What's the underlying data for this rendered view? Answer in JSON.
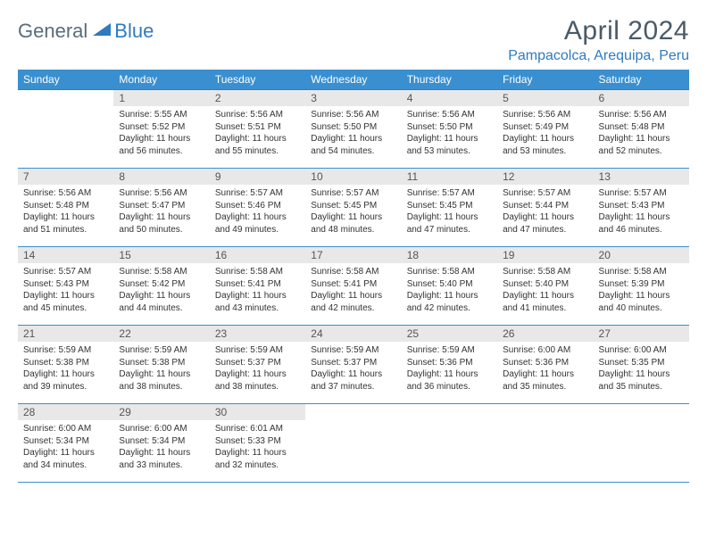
{
  "logo": {
    "general": "General",
    "blue": "Blue"
  },
  "title": "April 2024",
  "location": "Pampacolca, Arequipa, Peru",
  "colors": {
    "header_bg": "#3a8fd0",
    "header_text": "#ffffff",
    "accent": "#2f7bbf",
    "daynum_bg": "#e8e8e8",
    "text": "#333333",
    "title_color": "#4a5a68"
  },
  "weekdays": [
    "Sunday",
    "Monday",
    "Tuesday",
    "Wednesday",
    "Thursday",
    "Friday",
    "Saturday"
  ],
  "weeks": [
    [
      null,
      {
        "day": 1,
        "sunrise": "5:55 AM",
        "sunset": "5:52 PM",
        "daylight": "11 hours and 56 minutes."
      },
      {
        "day": 2,
        "sunrise": "5:56 AM",
        "sunset": "5:51 PM",
        "daylight": "11 hours and 55 minutes."
      },
      {
        "day": 3,
        "sunrise": "5:56 AM",
        "sunset": "5:50 PM",
        "daylight": "11 hours and 54 minutes."
      },
      {
        "day": 4,
        "sunrise": "5:56 AM",
        "sunset": "5:50 PM",
        "daylight": "11 hours and 53 minutes."
      },
      {
        "day": 5,
        "sunrise": "5:56 AM",
        "sunset": "5:49 PM",
        "daylight": "11 hours and 53 minutes."
      },
      {
        "day": 6,
        "sunrise": "5:56 AM",
        "sunset": "5:48 PM",
        "daylight": "11 hours and 52 minutes."
      }
    ],
    [
      {
        "day": 7,
        "sunrise": "5:56 AM",
        "sunset": "5:48 PM",
        "daylight": "11 hours and 51 minutes."
      },
      {
        "day": 8,
        "sunrise": "5:56 AM",
        "sunset": "5:47 PM",
        "daylight": "11 hours and 50 minutes."
      },
      {
        "day": 9,
        "sunrise": "5:57 AM",
        "sunset": "5:46 PM",
        "daylight": "11 hours and 49 minutes."
      },
      {
        "day": 10,
        "sunrise": "5:57 AM",
        "sunset": "5:45 PM",
        "daylight": "11 hours and 48 minutes."
      },
      {
        "day": 11,
        "sunrise": "5:57 AM",
        "sunset": "5:45 PM",
        "daylight": "11 hours and 47 minutes."
      },
      {
        "day": 12,
        "sunrise": "5:57 AM",
        "sunset": "5:44 PM",
        "daylight": "11 hours and 47 minutes."
      },
      {
        "day": 13,
        "sunrise": "5:57 AM",
        "sunset": "5:43 PM",
        "daylight": "11 hours and 46 minutes."
      }
    ],
    [
      {
        "day": 14,
        "sunrise": "5:57 AM",
        "sunset": "5:43 PM",
        "daylight": "11 hours and 45 minutes."
      },
      {
        "day": 15,
        "sunrise": "5:58 AM",
        "sunset": "5:42 PM",
        "daylight": "11 hours and 44 minutes."
      },
      {
        "day": 16,
        "sunrise": "5:58 AM",
        "sunset": "5:41 PM",
        "daylight": "11 hours and 43 minutes."
      },
      {
        "day": 17,
        "sunrise": "5:58 AM",
        "sunset": "5:41 PM",
        "daylight": "11 hours and 42 minutes."
      },
      {
        "day": 18,
        "sunrise": "5:58 AM",
        "sunset": "5:40 PM",
        "daylight": "11 hours and 42 minutes."
      },
      {
        "day": 19,
        "sunrise": "5:58 AM",
        "sunset": "5:40 PM",
        "daylight": "11 hours and 41 minutes."
      },
      {
        "day": 20,
        "sunrise": "5:58 AM",
        "sunset": "5:39 PM",
        "daylight": "11 hours and 40 minutes."
      }
    ],
    [
      {
        "day": 21,
        "sunrise": "5:59 AM",
        "sunset": "5:38 PM",
        "daylight": "11 hours and 39 minutes."
      },
      {
        "day": 22,
        "sunrise": "5:59 AM",
        "sunset": "5:38 PM",
        "daylight": "11 hours and 38 minutes."
      },
      {
        "day": 23,
        "sunrise": "5:59 AM",
        "sunset": "5:37 PM",
        "daylight": "11 hours and 38 minutes."
      },
      {
        "day": 24,
        "sunrise": "5:59 AM",
        "sunset": "5:37 PM",
        "daylight": "11 hours and 37 minutes."
      },
      {
        "day": 25,
        "sunrise": "5:59 AM",
        "sunset": "5:36 PM",
        "daylight": "11 hours and 36 minutes."
      },
      {
        "day": 26,
        "sunrise": "6:00 AM",
        "sunset": "5:36 PM",
        "daylight": "11 hours and 35 minutes."
      },
      {
        "day": 27,
        "sunrise": "6:00 AM",
        "sunset": "5:35 PM",
        "daylight": "11 hours and 35 minutes."
      }
    ],
    [
      {
        "day": 28,
        "sunrise": "6:00 AM",
        "sunset": "5:34 PM",
        "daylight": "11 hours and 34 minutes."
      },
      {
        "day": 29,
        "sunrise": "6:00 AM",
        "sunset": "5:34 PM",
        "daylight": "11 hours and 33 minutes."
      },
      {
        "day": 30,
        "sunrise": "6:01 AM",
        "sunset": "5:33 PM",
        "daylight": "11 hours and 32 minutes."
      },
      null,
      null,
      null,
      null
    ]
  ],
  "labels": {
    "sunrise": "Sunrise:",
    "sunset": "Sunset:",
    "daylight": "Daylight:"
  }
}
